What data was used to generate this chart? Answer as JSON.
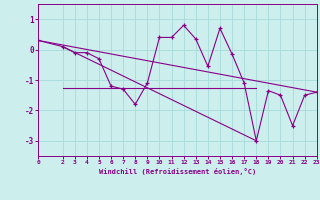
{
  "bg_color": "#cceeed",
  "grid_color": "#aadddd",
  "line_color": "#880088",
  "x_data": [
    0,
    2,
    3,
    4,
    5,
    6,
    7,
    8,
    9,
    10,
    11,
    12,
    13,
    14,
    15,
    16,
    17,
    18,
    19,
    20,
    21,
    22,
    23
  ],
  "y_data": [
    0.3,
    0.1,
    -0.1,
    -0.1,
    -0.3,
    -1.2,
    -1.3,
    -1.8,
    -1.1,
    0.4,
    0.4,
    0.8,
    0.35,
    -0.55,
    0.7,
    -0.15,
    -1.1,
    -3.0,
    -1.35,
    -1.5,
    -2.5,
    -1.5,
    -1.4
  ],
  "trend1_x": [
    0,
    23
  ],
  "trend1_y": [
    0.3,
    -1.4
  ],
  "trend2_x": [
    2,
    18
  ],
  "trend2_y": [
    0.1,
    -3.0
  ],
  "hline_x": [
    2,
    18
  ],
  "hline_y": -1.25,
  "xlim": [
    0,
    23
  ],
  "ylim": [
    -3.5,
    1.5
  ],
  "yticks": [
    1,
    0,
    -1,
    -2,
    -3
  ],
  "xticks": [
    0,
    2,
    3,
    4,
    5,
    6,
    7,
    8,
    9,
    10,
    11,
    12,
    13,
    14,
    15,
    16,
    17,
    18,
    19,
    20,
    21,
    22,
    23
  ],
  "xlabel": "Windchill (Refroidissement éolien,°C)"
}
